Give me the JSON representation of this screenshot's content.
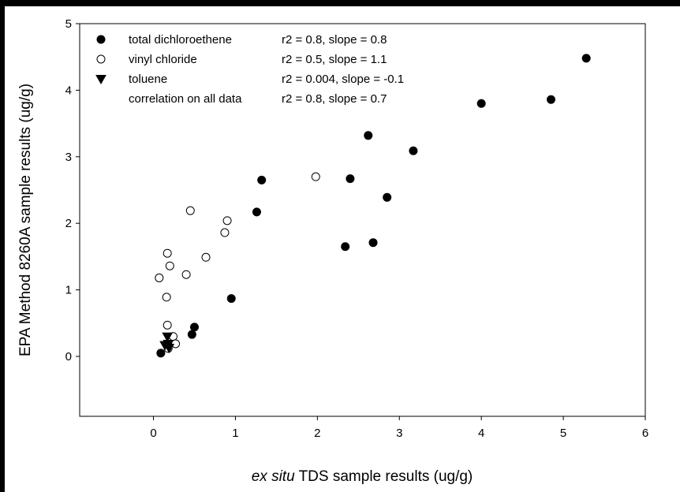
{
  "chart_data": {
    "type": "scatter",
    "xlabel_italic": "ex situ",
    "xlabel_rest": " TDS sample results (ug/g)",
    "ylabel": "EPA Method 8260A sample results (ug/g)",
    "xlim": [
      -0.9,
      6.0
    ],
    "ylim": [
      -0.9,
      5.0
    ],
    "xticks": [
      0,
      1,
      2,
      3,
      4,
      5,
      6
    ],
    "yticks": [
      0,
      1,
      2,
      3,
      4,
      5
    ],
    "grid": false,
    "legend_position": "top-left",
    "series": [
      {
        "name": "total dichloroethene",
        "marker": "filled-circle",
        "stats": "r2 = 0.8, slope = 0.8",
        "points": [
          [
            0.09,
            0.05
          ],
          [
            0.47,
            0.33
          ],
          [
            0.5,
            0.44
          ],
          [
            0.95,
            0.87
          ],
          [
            1.26,
            2.17
          ],
          [
            1.32,
            2.65
          ],
          [
            2.34,
            1.65
          ],
          [
            2.4,
            2.67
          ],
          [
            2.62,
            3.32
          ],
          [
            2.68,
            1.71
          ],
          [
            2.85,
            2.39
          ],
          [
            3.17,
            3.09
          ],
          [
            4.0,
            3.8
          ],
          [
            4.85,
            3.86
          ],
          [
            5.28,
            4.48
          ]
        ]
      },
      {
        "name": "vinyl chloride",
        "marker": "open-circle",
        "stats": "r2 = 0.5, slope = 1.1",
        "points": [
          [
            0.07,
            1.18
          ],
          [
            0.16,
            0.89
          ],
          [
            0.17,
            1.55
          ],
          [
            0.17,
            0.47
          ],
          [
            0.2,
            1.36
          ],
          [
            0.18,
            0.12
          ],
          [
            0.24,
            0.3
          ],
          [
            0.27,
            0.19
          ],
          [
            0.4,
            1.23
          ],
          [
            0.45,
            2.19
          ],
          [
            0.64,
            1.49
          ],
          [
            0.87,
            1.86
          ],
          [
            0.9,
            2.04
          ],
          [
            1.98,
            2.7
          ]
        ]
      },
      {
        "name": "toluene",
        "marker": "filled-triangle-down",
        "stats": "r2 = 0.004, slope = -0.1",
        "points": [
          [
            0.14,
            0.17
          ],
          [
            0.17,
            0.3
          ],
          [
            0.18,
            0.19
          ],
          [
            0.19,
            0.13
          ]
        ]
      }
    ],
    "correlation_all": {
      "name": "correlation on all data",
      "stats": "r2 = 0.8, slope = 0.7"
    }
  }
}
